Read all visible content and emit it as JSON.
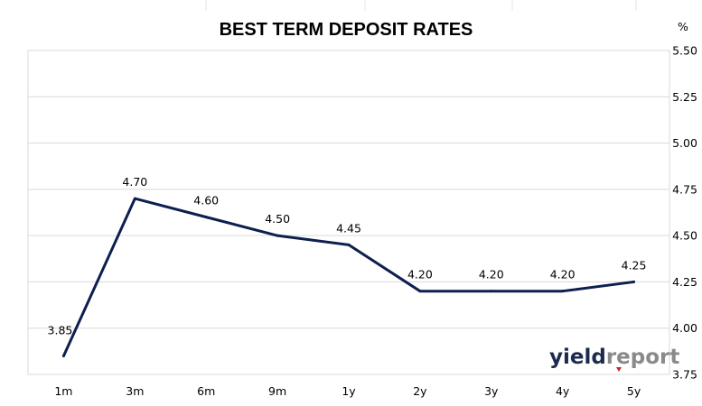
{
  "chart_data": {
    "type": "line",
    "title": "BEST TERM DEPOSIT RATES",
    "y_unit": "%",
    "categories": [
      "1m",
      "3m",
      "6m",
      "9m",
      "1y",
      "2y",
      "3y",
      "4y",
      "5y"
    ],
    "series": [
      {
        "values": [
          3.85,
          4.7,
          4.6,
          4.5,
          4.45,
          4.2,
          4.2,
          4.2,
          4.25
        ],
        "labels": [
          "3.85",
          "4.70",
          "4.60",
          "4.50",
          "4.45",
          "4.20",
          "4.20",
          "4.20",
          "4.25"
        ],
        "color": "#0d1f4f"
      }
    ],
    "ylim": [
      3.75,
      5.5
    ],
    "yticks": [
      "3.75",
      "4.00",
      "4.25",
      "4.50",
      "4.75",
      "5.00",
      "5.25",
      "5.50"
    ],
    "y_axis_side": "right",
    "grid": true,
    "colors": {
      "line": "#0d1f4f",
      "grid": "#d9d9d9",
      "text": "#000000"
    }
  },
  "logo": {
    "text": "yieldreport",
    "part1": "yield",
    "part2": "report",
    "color1": "#1b2a4e",
    "color2": "#8a8a8a",
    "accent": "#c0282d"
  }
}
